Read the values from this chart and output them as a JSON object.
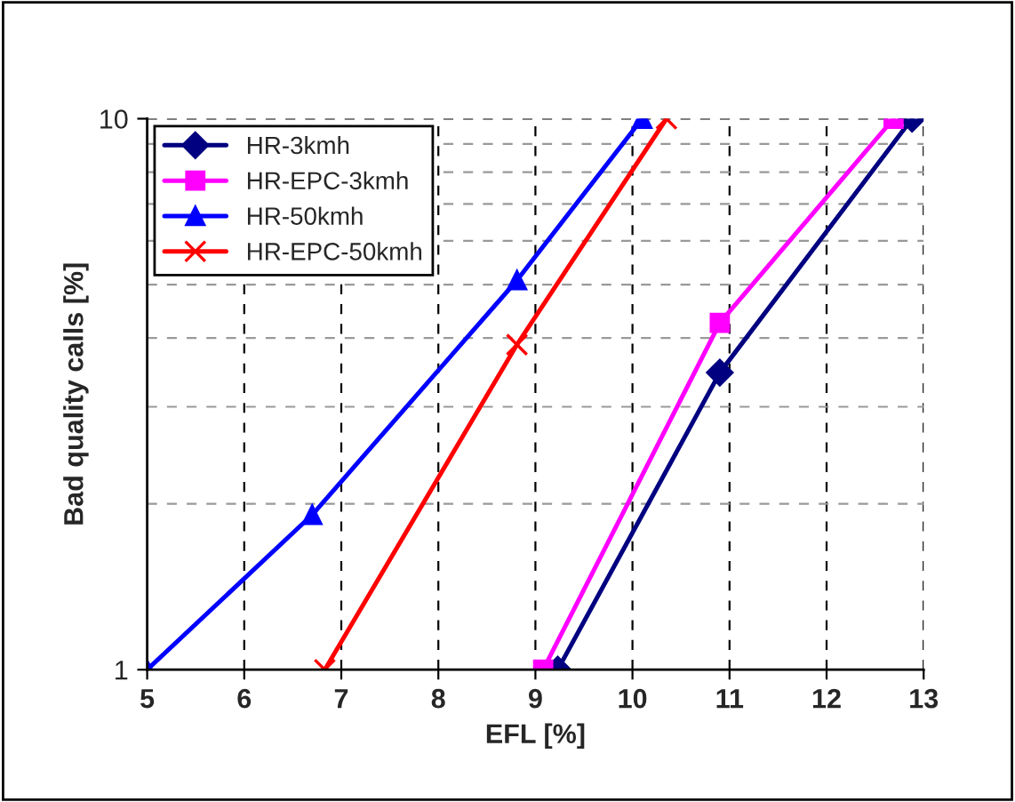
{
  "chart_data": {
    "type": "line",
    "xlabel": "EFL [%]",
    "ylabel": "Bad quality calls [%]",
    "xlim": [
      5,
      13
    ],
    "xticks": [
      5,
      6,
      7,
      8,
      9,
      10,
      11,
      12,
      13
    ],
    "ylim": [
      1,
      10
    ],
    "yticks": [
      1,
      10
    ],
    "log": "y",
    "grid": true,
    "legend": "top left",
    "series": [
      {
        "name": "HR-3kmh",
        "color": "#000080",
        "marker": "diamond",
        "x": [
          9.23,
          10.9,
          12.88
        ],
        "values": [
          1,
          3.46,
          10
        ]
      },
      {
        "name": "HR-EPC-3kmh",
        "color": "#ff00ff",
        "marker": "square",
        "x": [
          9.08,
          10.9,
          12.69
        ],
        "values": [
          1,
          4.26,
          10
        ]
      },
      {
        "name": "HR-50kmh",
        "color": "#0000ff",
        "marker": "triangle",
        "x": [
          5,
          6.7,
          8.81,
          10.1
        ],
        "values": [
          1,
          1.91,
          5.09,
          10
        ]
      },
      {
        "name": "HR-EPC-50kmh",
        "color": "#ff0000",
        "marker": "cross",
        "x": [
          6.83,
          8.81,
          10.35
        ],
        "values": [
          1,
          3.89,
          10
        ]
      }
    ]
  }
}
